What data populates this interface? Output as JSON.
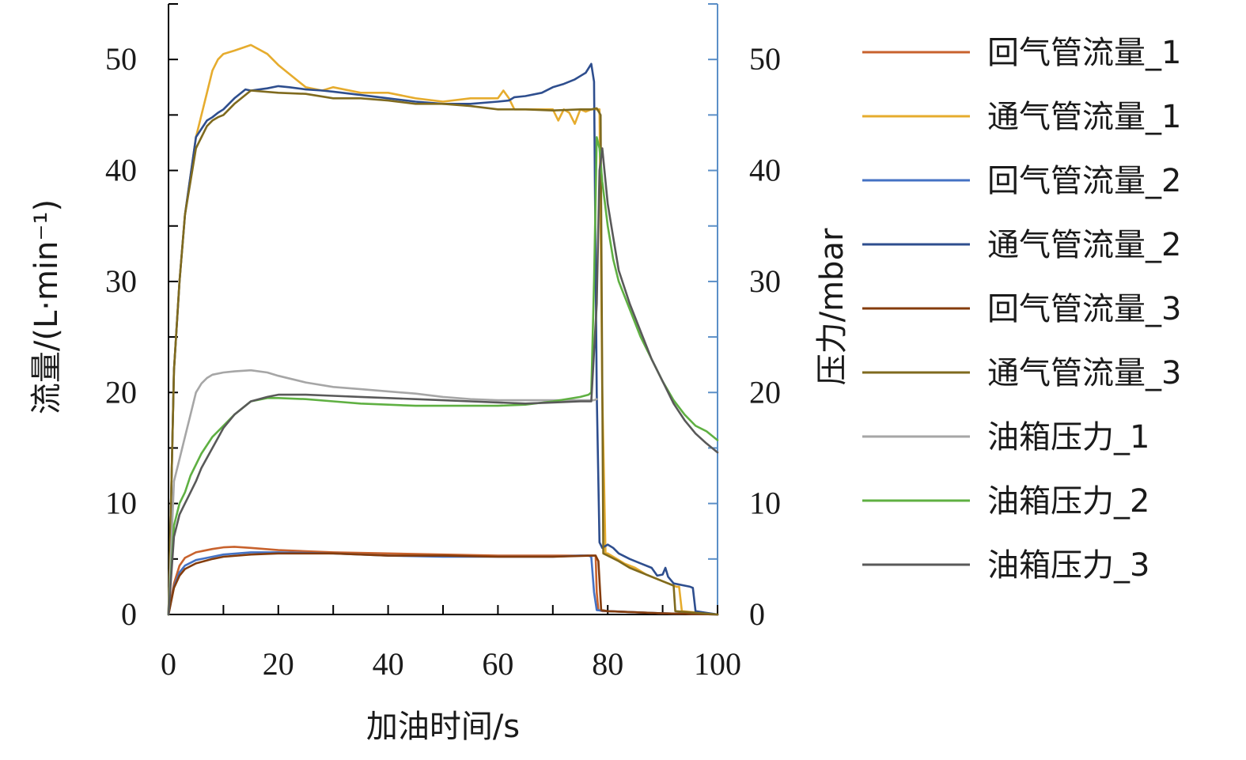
{
  "chart_data": {
    "type": "line",
    "xlabel": "加油时间/s",
    "ylabel_left": "流量/(L·min⁻¹)",
    "ylabel_right": "压力/mbar",
    "xlim": [
      0,
      100
    ],
    "ylim_left": [
      0,
      55
    ],
    "ylim_right": [
      0,
      55
    ],
    "xticks": [
      0,
      20,
      40,
      60,
      80,
      100
    ],
    "yticks_left": [
      0,
      10,
      20,
      30,
      40,
      50
    ],
    "yticks_right": [
      0,
      10,
      20,
      30,
      40,
      50
    ],
    "legend_position": "right",
    "series": [
      {
        "name": "回气管流量_1",
        "axis": "left",
        "color": "#c8622d",
        "x": [
          0,
          1,
          2,
          3,
          5,
          8,
          10,
          12,
          15,
          20,
          30,
          40,
          50,
          60,
          70,
          77,
          77.8,
          78,
          78.3,
          79,
          80,
          85,
          90,
          95,
          100
        ],
        "y": [
          0,
          2.8,
          4.4,
          5.1,
          5.6,
          5.9,
          6.05,
          6.1,
          6.0,
          5.8,
          5.6,
          5.5,
          5.4,
          5.3,
          5.3,
          5.3,
          5.3,
          2.0,
          0.4,
          0.3,
          0.3,
          0.2,
          0.1,
          0.05,
          0
        ]
      },
      {
        "name": "通气管流量_1",
        "axis": "left",
        "color": "#e6ac2e",
        "x": [
          0,
          1,
          2,
          3,
          5,
          7,
          8,
          9,
          10,
          12,
          15,
          18,
          20,
          25,
          28,
          30,
          35,
          40,
          45,
          50,
          55,
          60,
          61,
          62,
          63,
          65,
          70,
          71,
          72,
          73,
          74,
          75,
          76,
          77,
          78,
          78.5,
          79,
          79.6,
          80,
          81,
          83,
          85,
          87,
          89,
          90,
          91,
          92,
          92.5,
          93,
          93.5,
          100
        ],
        "y": [
          0,
          22,
          30,
          36,
          43,
          47,
          49,
          50,
          50.5,
          50.8,
          51.3,
          50.5,
          49.5,
          47.5,
          47.2,
          47.5,
          47,
          47,
          46.5,
          46.2,
          46.5,
          46.5,
          47.2,
          46.5,
          45.5,
          45.5,
          45.5,
          44.5,
          45.5,
          45.2,
          44.2,
          45.5,
          45.3,
          45.5,
          45.5,
          45.5,
          20,
          5.5,
          5.5,
          5.2,
          4.6,
          4.2,
          3.6,
          3.2,
          3.0,
          2.8,
          2.6,
          2.5,
          2.5,
          0.3,
          0
        ]
      },
      {
        "name": "回气管流量_2",
        "axis": "left",
        "color": "#4472c4",
        "x": [
          0,
          1,
          2,
          3,
          5,
          8,
          10,
          15,
          20,
          30,
          40,
          50,
          60,
          70,
          75,
          76.5,
          77,
          77.5,
          78,
          80,
          85,
          90,
          95,
          100
        ],
        "y": [
          0,
          2.5,
          3.8,
          4.4,
          4.9,
          5.2,
          5.4,
          5.6,
          5.6,
          5.5,
          5.3,
          5.2,
          5.2,
          5.2,
          5.3,
          5.3,
          5.2,
          2.0,
          0.4,
          0.3,
          0.2,
          0.1,
          0.05,
          0
        ]
      },
      {
        "name": "通气管流量_2",
        "axis": "left",
        "color": "#2e4e8e",
        "x": [
          0,
          1,
          2,
          3,
          5,
          7,
          8,
          9,
          10,
          12,
          14,
          15,
          18,
          20,
          22,
          25,
          28,
          30,
          35,
          40,
          45,
          50,
          55,
          60,
          62,
          63,
          65,
          68,
          70,
          72,
          74,
          75,
          76,
          77,
          77.5,
          78,
          78.5,
          79,
          80,
          81,
          82,
          84,
          86,
          88,
          89,
          90,
          90.5,
          91,
          92,
          94,
          95,
          95.5,
          96,
          100
        ],
        "y": [
          0,
          22,
          30,
          36,
          43,
          44.5,
          44.8,
          45.2,
          45.5,
          46.5,
          47.3,
          47.2,
          47.4,
          47.6,
          47.5,
          47.3,
          47.2,
          47.1,
          46.8,
          46.5,
          46.2,
          46.0,
          46.0,
          46.2,
          46.3,
          46.6,
          46.7,
          47.0,
          47.5,
          47.8,
          48.2,
          48.5,
          48.8,
          49.6,
          48.0,
          20.0,
          6.5,
          6.0,
          6.3,
          6.0,
          5.5,
          5.0,
          4.6,
          4.2,
          3.5,
          3.6,
          4.2,
          3.4,
          2.8,
          2.6,
          2.5,
          2.4,
          0.3,
          0
        ]
      },
      {
        "name": "回气管流量_3",
        "axis": "left",
        "color": "#843c0c",
        "x": [
          0,
          1,
          2,
          3,
          5,
          8,
          10,
          15,
          20,
          30,
          40,
          50,
          60,
          70,
          77,
          77.8,
          78.3,
          78.8,
          80,
          85,
          90,
          95,
          100
        ],
        "y": [
          0,
          2.4,
          3.5,
          4.1,
          4.6,
          5.0,
          5.2,
          5.4,
          5.5,
          5.5,
          5.3,
          5.3,
          5.2,
          5.2,
          5.3,
          5.3,
          4.8,
          0.4,
          0.3,
          0.2,
          0.1,
          0.05,
          0
        ]
      },
      {
        "name": "通气管流量_3",
        "axis": "left",
        "color": "#7f6a1e",
        "x": [
          0,
          1,
          2,
          3,
          5,
          7,
          8,
          9,
          10,
          12,
          15,
          20,
          25,
          30,
          35,
          40,
          45,
          50,
          55,
          60,
          65,
          70,
          75,
          77,
          78,
          78.7,
          79.2,
          80,
          82,
          84,
          86,
          88,
          90,
          91,
          92,
          92.3,
          100
        ],
        "y": [
          0,
          22,
          30,
          36,
          42,
          44,
          44.5,
          44.8,
          45.0,
          46.0,
          47.2,
          47.0,
          46.9,
          46.5,
          46.5,
          46.3,
          46.0,
          46.0,
          45.8,
          45.5,
          45.5,
          45.4,
          45.5,
          45.5,
          45.6,
          45.0,
          5.5,
          5.3,
          4.8,
          4.2,
          3.8,
          3.4,
          3.0,
          2.8,
          2.6,
          0.3,
          0
        ]
      },
      {
        "name": "油箱压力_1",
        "axis": "right",
        "color": "#a6a6a6",
        "x": [
          0,
          1,
          2,
          3,
          4,
          5,
          6,
          7,
          8,
          10,
          12,
          15,
          18,
          20,
          25,
          30,
          35,
          40,
          45,
          50,
          55,
          60,
          65,
          70,
          75,
          77.5,
          78
        ],
        "y": [
          0,
          12,
          14,
          16,
          18,
          20,
          20.8,
          21.3,
          21.6,
          21.8,
          21.9,
          22.0,
          21.8,
          21.5,
          20.9,
          20.5,
          20.3,
          20.1,
          19.9,
          19.6,
          19.4,
          19.3,
          19.3,
          19.3,
          19.3,
          19.3,
          19.4
        ]
      },
      {
        "name": "油箱压力_2",
        "axis": "right",
        "color": "#5fb042",
        "x": [
          0,
          1,
          2,
          3,
          4,
          5,
          6,
          8,
          10,
          12,
          15,
          18,
          20,
          25,
          30,
          35,
          40,
          45,
          50,
          55,
          60,
          65,
          70,
          75,
          76.5,
          77,
          77.5,
          78,
          78.5,
          79,
          80,
          81,
          82,
          84,
          86,
          88,
          90,
          92,
          94,
          96,
          98,
          100
        ],
        "y": [
          0,
          8,
          10,
          11,
          12.5,
          13.5,
          14.5,
          16,
          17,
          18,
          19.2,
          19.5,
          19.5,
          19.4,
          19.2,
          19.0,
          18.9,
          18.8,
          18.8,
          18.8,
          18.8,
          18.9,
          19.2,
          19.6,
          19.8,
          20.0,
          30.0,
          43.0,
          42.0,
          39.0,
          35.0,
          32.0,
          30.0,
          27.5,
          25.0,
          23.0,
          21.0,
          19.3,
          18.0,
          17.0,
          16.5,
          15.7
        ]
      },
      {
        "name": "油箱压力_3",
        "axis": "right",
        "color": "#595959",
        "x": [
          0,
          1,
          2,
          3,
          4,
          5,
          6,
          8,
          10,
          12,
          15,
          18,
          20,
          25,
          30,
          35,
          40,
          45,
          50,
          55,
          60,
          65,
          70,
          75,
          77,
          78,
          78.5,
          79,
          80,
          81,
          82,
          84,
          86,
          88,
          90,
          92,
          94,
          96,
          98,
          100
        ],
        "y": [
          0,
          7,
          9,
          10,
          11,
          12,
          13.2,
          15,
          16.8,
          18,
          19.2,
          19.6,
          19.8,
          19.8,
          19.7,
          19.6,
          19.5,
          19.4,
          19.3,
          19.2,
          19.1,
          19.0,
          19.1,
          19.2,
          19.2,
          28.0,
          40.0,
          42.0,
          37.0,
          34.0,
          31.0,
          28.0,
          25.5,
          23.0,
          21.0,
          19.0,
          17.5,
          16.3,
          15.4,
          14.6
        ]
      }
    ]
  }
}
